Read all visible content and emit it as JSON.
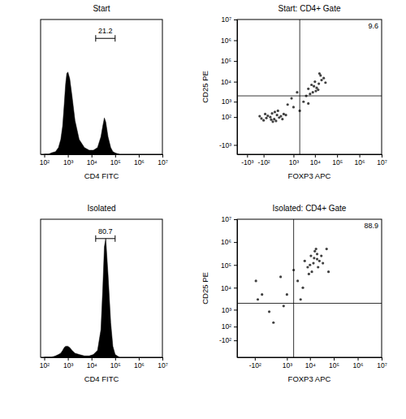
{
  "chart_data": [
    {
      "type": "area",
      "title": "Start",
      "x_label": "CD4 FITC",
      "color": "#000000",
      "log": "x",
      "tick_labels": "x",
      "x": [
        100,
        150,
        200,
        300,
        400,
        500,
        600,
        700,
        800,
        900,
        1000,
        1200,
        1500,
        2000,
        3000,
        5000,
        8000,
        12000,
        18000,
        25000,
        30000,
        35000,
        40000,
        50000,
        65000,
        80000,
        100000,
        150000
      ],
      "values": [
        0,
        0,
        1,
        2,
        5,
        11,
        21,
        37,
        52,
        60,
        61,
        56,
        43,
        25,
        11,
        5,
        3,
        3,
        5,
        13,
        21,
        27,
        24,
        13,
        5,
        2,
        1,
        0
      ],
      "xlim": [
        70,
        10000000
      ],
      "ylim": [
        0,
        100
      ],
      "xticks": [
        {
          "value": 100,
          "label": "10²"
        },
        {
          "value": 1000,
          "label": "10³"
        },
        {
          "value": 10000,
          "label": "10⁴"
        },
        {
          "value": 100000,
          "label": "10⁵"
        },
        {
          "value": 1000000,
          "label": "10⁶"
        },
        {
          "value": 10000000,
          "label": "10⁷"
        }
      ],
      "gate": {
        "value": 21.2,
        "range": [
          15000,
          100000
        ]
      }
    },
    {
      "type": "scatter",
      "title": "Start: CD4+ Gate",
      "x_label": "FOXP3 APC",
      "y_label": "CD25 PE",
      "color": "#000000",
      "marker": "dot",
      "log": true,
      "x": [
        -50,
        0,
        50,
        100,
        -100,
        20,
        150,
        -30,
        80,
        200,
        -150,
        60,
        300,
        10,
        -70,
        120,
        250,
        400,
        -200,
        30,
        8000,
        12000,
        15000,
        10000,
        20000,
        6000,
        9000,
        25000,
        14000,
        18000,
        7000,
        30000,
        11000,
        16000,
        5000,
        1000,
        2000,
        3000,
        5000,
        800,
        4000,
        1500,
        500
      ],
      "values": [
        80,
        100,
        60,
        150,
        40,
        200,
        90,
        130,
        30,
        120,
        70,
        250,
        180,
        50,
        180,
        300,
        60,
        150,
        120,
        20,
        3000,
        5000,
        8000,
        10000,
        12000,
        2500,
        6000,
        15000,
        4000,
        20000,
        7000,
        9000,
        3500,
        25000,
        4500,
        500,
        300,
        1000,
        800,
        1500,
        2000,
        3000,
        700
      ],
      "xlim": [
        -3000,
        10000000
      ],
      "ylim": [
        -3000,
        10000000
      ],
      "xticks": [
        {
          "value": -1000,
          "label": "-10³"
        },
        {
          "value": -100,
          "label": "-10²"
        },
        {
          "value": 1000,
          "label": "10³"
        },
        {
          "value": 10000,
          "label": "10⁴"
        },
        {
          "value": 100000,
          "label": "10⁵"
        },
        {
          "value": 1000000,
          "label": "10⁶"
        },
        {
          "value": 10000000,
          "label": "10⁷"
        }
      ],
      "yticks": [
        {
          "value": -1000,
          "label": "-10³"
        },
        {
          "value": 100,
          "label": "10²"
        },
        {
          "value": 1000,
          "label": "10³"
        },
        {
          "value": 10000,
          "label": "10⁴"
        },
        {
          "value": 100000,
          "label": "10⁵"
        },
        {
          "value": 1000000,
          "label": "10⁶"
        },
        {
          "value": 10000000,
          "label": "10⁷"
        }
      ],
      "quadrant": {
        "x": 2000,
        "y": 2000,
        "value": 9.6
      }
    },
    {
      "type": "area",
      "title": "Isolated",
      "x_label": "CD4 FITC",
      "color": "#000000",
      "log": "x",
      "tick_labels": "x",
      "x": [
        100,
        150,
        200,
        300,
        400,
        500,
        600,
        700,
        800,
        900,
        1000,
        1200,
        1500,
        2000,
        3000,
        5000,
        8000,
        12000,
        18000,
        25000,
        30000,
        35000,
        40000,
        50000,
        65000,
        80000,
        100000,
        150000
      ],
      "values": [
        0,
        0,
        0,
        1,
        2,
        3,
        5,
        7,
        8,
        8,
        8,
        7,
        5,
        3,
        2,
        1,
        1,
        2,
        5,
        20,
        50,
        80,
        86,
        60,
        25,
        8,
        2,
        0
      ],
      "xlim": [
        70,
        10000000
      ],
      "ylim": [
        0,
        100
      ],
      "xticks": [
        {
          "value": 100,
          "label": "10²"
        },
        {
          "value": 1000,
          "label": "10³"
        },
        {
          "value": 10000,
          "label": "10⁴"
        },
        {
          "value": 100000,
          "label": "10⁵"
        },
        {
          "value": 1000000,
          "label": "10⁶"
        },
        {
          "value": 10000000,
          "label": "10⁷"
        }
      ],
      "gate": {
        "value": 80.7,
        "range": [
          15000,
          100000
        ]
      }
    },
    {
      "type": "scatter",
      "title": "Isolated: CD4+ Gate",
      "x_label": "FOXP3 APC",
      "y_label": "CD25 PE",
      "color": "#000000",
      "marker": "dot",
      "log": true,
      "x": [
        10000,
        15000,
        20000,
        12000,
        25000,
        18000,
        8000,
        30000,
        14000,
        22000,
        16000,
        11000,
        35000,
        9000,
        20000,
        3000,
        5000,
        2000,
        1000,
        500,
        -50,
        100,
        200,
        0,
        4000,
        60000,
        50000,
        -80,
        700,
        6000
      ],
      "values": [
        100000,
        200000,
        300000,
        50000,
        150000,
        500000,
        80000,
        250000,
        120000,
        80000,
        400000,
        250000,
        120000,
        40000,
        180000,
        20000,
        10000,
        60000,
        5000,
        30000,
        3000,
        800,
        200,
        5000,
        3000,
        50000,
        500000,
        20000,
        1500,
        150000
      ],
      "xlim": [
        -1000,
        10000000
      ],
      "ylim": [
        -1000,
        10000000
      ],
      "xticks": [
        {
          "value": -100,
          "label": "-10²"
        },
        {
          "value": 1000,
          "label": "10³"
        },
        {
          "value": 10000,
          "label": "10⁴"
        },
        {
          "value": 100000,
          "label": "10⁵"
        },
        {
          "value": 1000000,
          "label": "10⁶"
        },
        {
          "value": 10000000,
          "label": "10⁷"
        }
      ],
      "yticks": [
        {
          "value": -100,
          "label": "-10²"
        },
        {
          "value": 100,
          "label": "10²"
        },
        {
          "value": 1000,
          "label": "10³"
        },
        {
          "value": 10000,
          "label": "10⁴"
        },
        {
          "value": 100000,
          "label": "10⁵"
        },
        {
          "value": 1000000,
          "label": "10⁶"
        },
        {
          "value": 10000000,
          "label": "10⁷"
        }
      ],
      "quadrant": {
        "x": 2000,
        "y": 2000,
        "value": 88.9
      }
    }
  ]
}
